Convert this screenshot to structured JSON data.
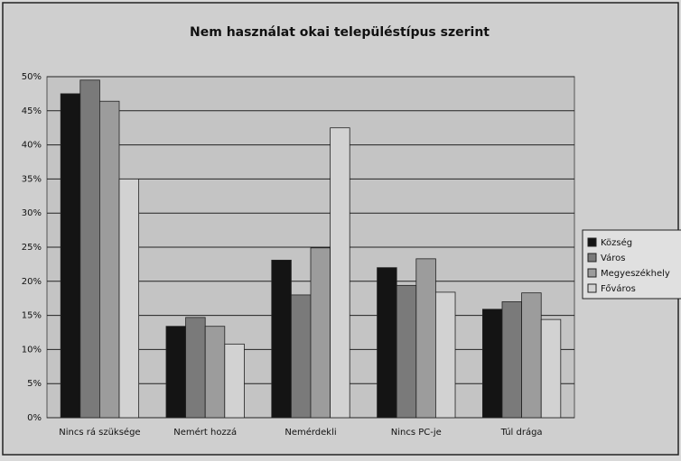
{
  "chart_data": {
    "type": "bar",
    "title": "Nem használat okai településtípus szerint",
    "categories": [
      "Nincs rá szüksége",
      "Nemért hozzá",
      "Nemérdekli",
      "Nincs PC-je",
      "Túl drága"
    ],
    "series": [
      {
        "name": "Község",
        "color": "#141414",
        "values": [
          47.5,
          13.4,
          23.1,
          22.0,
          15.9
        ]
      },
      {
        "name": "Város",
        "color": "#7a7a7a",
        "values": [
          49.5,
          14.7,
          18.0,
          19.4,
          17.0
        ]
      },
      {
        "name": "Megyeszékhely",
        "color": "#9c9c9c",
        "values": [
          46.4,
          13.4,
          24.9,
          23.3,
          18.3
        ]
      },
      {
        "name": "Főváros",
        "color": "#d2d2d2",
        "values": [
          35.0,
          10.8,
          42.5,
          18.4,
          14.4
        ]
      }
    ],
    "ylim": [
      0,
      50
    ],
    "yticks": [
      {
        "value": 0,
        "label": "0%"
      },
      {
        "value": 5,
        "label": "5%"
      },
      {
        "value": 10,
        "label": "10%"
      },
      {
        "value": 15,
        "label": "15%"
      },
      {
        "value": 20,
        "label": "20%"
      },
      {
        "value": 25,
        "label": "25%"
      },
      {
        "value": 30,
        "label": "30%"
      },
      {
        "value": 35,
        "label": "35%"
      },
      {
        "value": 40,
        "label": "40%"
      },
      {
        "value": 45,
        "label": "45%"
      },
      {
        "value": 50,
        "label": "50%"
      }
    ],
    "grid": true,
    "legend": "right"
  }
}
